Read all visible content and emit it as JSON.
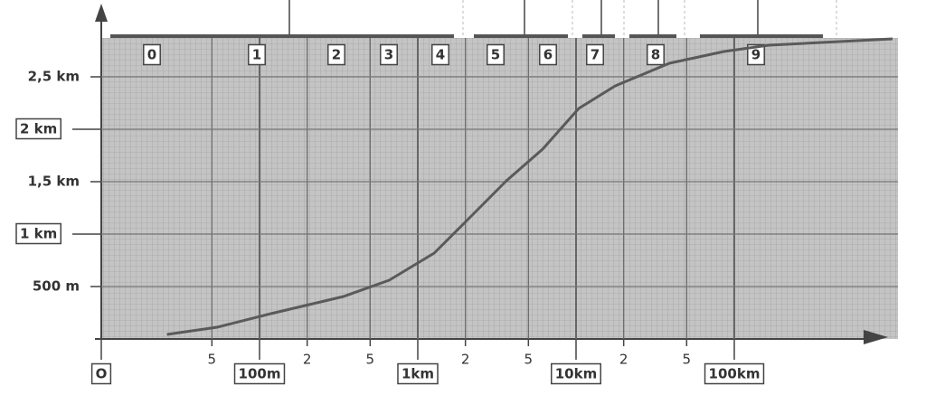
{
  "chart_data": {
    "type": "line",
    "x": [
      26,
      54,
      118,
      340,
      660,
      1270,
      2150,
      3630,
      6150,
      10400,
      17700,
      38900,
      86000,
      165000,
      1000000
    ],
    "series": [
      {
        "color": "#5a5a5a",
        "values": [
          43,
          112,
          241,
          405,
          560,
          819,
          1164,
          1509,
          1810,
          2198,
          2414,
          2629,
          2741,
          2802,
          2862
        ]
      }
    ],
    "xlog": true,
    "xlim": [
      10,
      1000000
    ],
    "xticks": [
      {
        "value": 10,
        "label": "O"
      },
      {
        "value": 50,
        "label": "5"
      },
      {
        "value": 100,
        "label": "100m"
      },
      {
        "value": 200,
        "label": "2"
      },
      {
        "value": 500,
        "label": "5"
      },
      {
        "value": 1000,
        "label": "1km"
      },
      {
        "value": 2000,
        "label": "2"
      },
      {
        "value": 5000,
        "label": "5"
      },
      {
        "value": 10000,
        "label": "10km"
      },
      {
        "value": 20000,
        "label": "2"
      },
      {
        "value": 50000,
        "label": "5"
      },
      {
        "value": 100000,
        "label": "100km"
      }
    ],
    "ylim": [
      0,
      3000
    ],
    "yticks": [
      {
        "value": 500,
        "label": "500 m"
      },
      {
        "value": 1000,
        "label": "1 km"
      },
      {
        "value": 1500,
        "label": "1,5 km"
      },
      {
        "value": 2000,
        "label": "2 km"
      },
      {
        "value": 2500,
        "label": "2,5 km"
      }
    ],
    "zones": [
      "0",
      "1",
      "2",
      "3",
      "4",
      "5",
      "6",
      "7",
      "8",
      "9"
    ]
  }
}
